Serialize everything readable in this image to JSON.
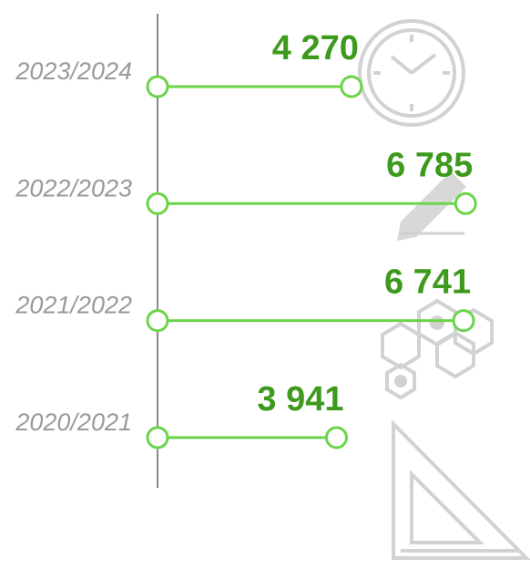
{
  "chart_data": {
    "type": "lollipop",
    "categories": [
      "2023/2024",
      "2022/2023",
      "2021/2022",
      "2020/2021"
    ],
    "values": [
      4270,
      6785,
      6741,
      3941
    ],
    "value_labels": [
      "4 270",
      "6 785",
      "6 741",
      "3 941"
    ],
    "color": "#6cd44a",
    "label_color": "#3d9a1c",
    "xlim": [
      0,
      7000
    ]
  }
}
